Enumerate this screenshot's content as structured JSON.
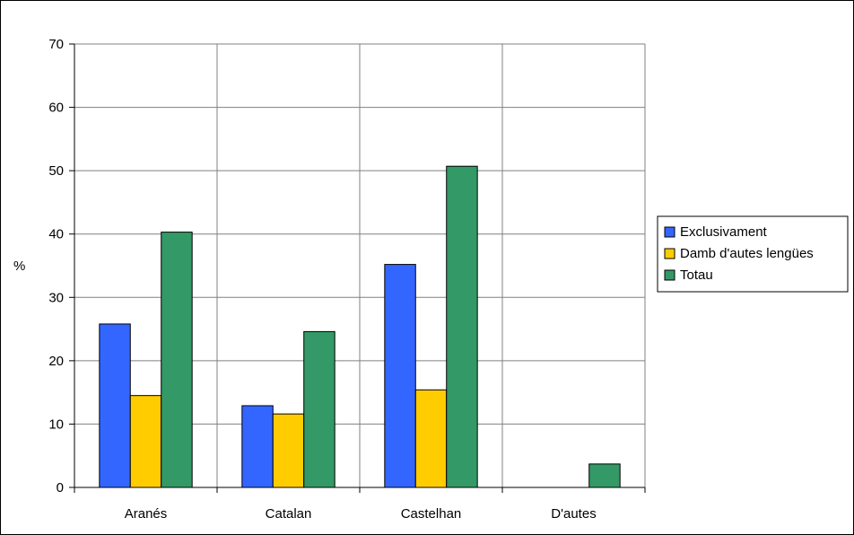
{
  "chart_data": {
    "type": "bar",
    "title": "",
    "xlabel": "",
    "ylabel": "%",
    "ylim": [
      0,
      70
    ],
    "yticks": [
      0,
      10,
      20,
      30,
      40,
      50,
      60,
      70
    ],
    "categories": [
      "Aranés",
      "Catalan",
      "Castelhan",
      "D'autes"
    ],
    "series": [
      {
        "name": "Exclusivament",
        "color": "#3366FF",
        "values": [
          25.8,
          12.9,
          35.2,
          0
        ]
      },
      {
        "name": "Damb d'autes lengües",
        "color": "#FFCC00",
        "values": [
          14.5,
          11.6,
          15.4,
          0
        ]
      },
      {
        "name": "Totau",
        "color": "#339966",
        "values": [
          40.3,
          24.6,
          50.7,
          3.7
        ]
      }
    ],
    "grid": {
      "horizontal": true,
      "vertical_category_separators": true
    },
    "legend": "right"
  }
}
